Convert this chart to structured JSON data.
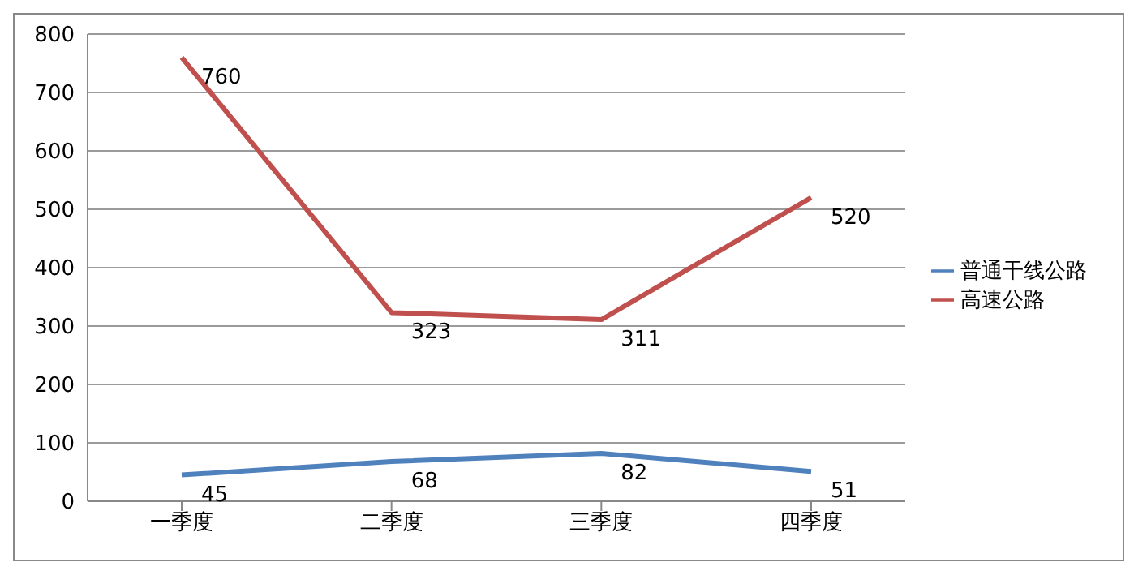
{
  "chart_data": {
    "type": "line",
    "categories": [
      "一季度",
      "二季度",
      "三季度",
      "四季度"
    ],
    "series": [
      {
        "name": "普通干线公路",
        "color": "#4f81bd",
        "values": [
          45,
          68,
          82,
          51
        ]
      },
      {
        "name": "高速公路",
        "color": "#c0504d",
        "values": [
          760,
          323,
          311,
          520
        ]
      }
    ],
    "ylim": [
      0,
      800
    ],
    "yticks": [
      0,
      100,
      200,
      300,
      400,
      500,
      600,
      700,
      800
    ],
    "grid": "y",
    "legend": "right",
    "data_labels": true,
    "marker": "none",
    "line_style": "solid"
  }
}
